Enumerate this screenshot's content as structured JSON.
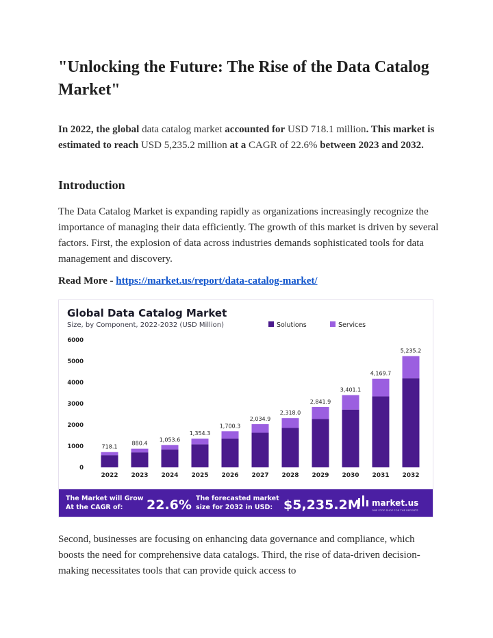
{
  "title": "\"Unlocking the Future: The Rise of the Data Catalog Market\"",
  "summary": {
    "s1": "In 2022, the global",
    "s2": " data catalog market ",
    "s3": "accounted for",
    "s4": " USD 718.1 million",
    "s5": ". This market is estimated to reach",
    "s6": " USD 5,235.2 million ",
    "s7": "at a",
    "s8": " CAGR of 22.6% ",
    "s9": "between 2023 and 2032."
  },
  "intro": {
    "heading": "Introduction",
    "paragraph": "The Data Catalog Market is expanding rapidly as organizations increasingly recognize the importance of managing their data efficiently. The growth of this market is driven by several factors. First, the explosion of data across industries demands sophisticated tools for data management and discovery."
  },
  "read_more": {
    "label": "Read More - ",
    "link_text": "https://market.us/report/data-catalog-market/"
  },
  "paragraph2": " Second, businesses are focusing on enhancing data governance and compliance, which boosts the need for comprehensive data catalogs. Third, the rise of data-driven decision-making necessitates tools that can provide quick access to",
  "colors": {
    "solutions": "#4a1a8c",
    "services": "#9b5fe0",
    "banner": "#4b1fa3",
    "link": "#1155cc"
  },
  "banner": {
    "grow_line1": "The Market will Grow",
    "grow_line2": "At the CAGR of:",
    "cagr": "22.6%",
    "forecast_line1": "The forecasted market",
    "forecast_line2": "size for 2032 in USD:",
    "forecast_value": "$5,235.2M",
    "brand": "market.us",
    "brand_tag": "ONE STOP SHOP FOR THE REPORTS"
  },
  "chart_data": {
    "type": "bar",
    "stacked": true,
    "title": "Global Data Catalog Market",
    "subtitle": "Size, by Component, 2022-2032 (USD Million)",
    "categories": [
      "2022",
      "2023",
      "2024",
      "2025",
      "2026",
      "2027",
      "2028",
      "2029",
      "2030",
      "2031",
      "2032"
    ],
    "totals": [
      718.1,
      880.4,
      1053.6,
      1354.3,
      1700.3,
      2034.9,
      2318.0,
      2841.9,
      3401.1,
      4169.7,
      5235.2
    ],
    "total_labels": [
      "718.1",
      "880.4",
      "1,053.6",
      "1,354.3",
      "1,700.3",
      "2,034.9",
      "2,318.0",
      "2,841.9",
      "3,401.1",
      "4,169.7",
      "5,235.2"
    ],
    "series": [
      {
        "name": "Solutions",
        "values": [
          575,
          705,
          845,
          1085,
          1360,
          1630,
          1855,
          2275,
          2720,
          3340,
          4190
        ]
      },
      {
        "name": "Services",
        "values": [
          143.1,
          175.4,
          208.6,
          269.3,
          340.3,
          404.9,
          463.0,
          566.9,
          681.1,
          829.7,
          1045.2
        ]
      }
    ],
    "yticks": [
      "0",
      "1000",
      "2000",
      "3000",
      "4000",
      "5000",
      "6000"
    ],
    "ylim": [
      0,
      6000
    ],
    "legend_position": "top-right",
    "grid": false
  }
}
